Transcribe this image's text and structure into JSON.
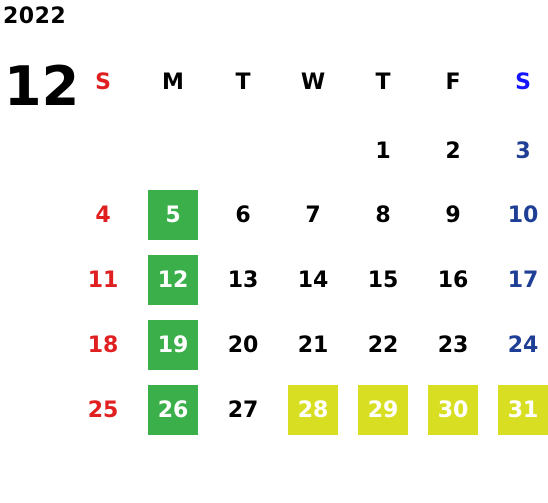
{
  "header": {
    "year": "2022",
    "month": "12"
  },
  "colors": {
    "sunday": "#e02020",
    "saturday": "#1f3f96",
    "saturday_header": "#1515ff",
    "green_highlight": "#3bb04a",
    "yellow_highlight": "#d8df23"
  },
  "weekdays": [
    "S",
    "M",
    "T",
    "W",
    "T",
    "F",
    "S"
  ],
  "weeks": [
    [
      {
        "day": "",
        "hl": ""
      },
      {
        "day": "",
        "hl": ""
      },
      {
        "day": "",
        "hl": ""
      },
      {
        "day": "",
        "hl": ""
      },
      {
        "day": "1",
        "hl": ""
      },
      {
        "day": "2",
        "hl": ""
      },
      {
        "day": "3",
        "hl": ""
      }
    ],
    [
      {
        "day": "4",
        "hl": ""
      },
      {
        "day": "5",
        "hl": "green"
      },
      {
        "day": "6",
        "hl": ""
      },
      {
        "day": "7",
        "hl": ""
      },
      {
        "day": "8",
        "hl": ""
      },
      {
        "day": "9",
        "hl": ""
      },
      {
        "day": "10",
        "hl": ""
      }
    ],
    [
      {
        "day": "11",
        "hl": ""
      },
      {
        "day": "12",
        "hl": "green"
      },
      {
        "day": "13",
        "hl": ""
      },
      {
        "day": "14",
        "hl": ""
      },
      {
        "day": "15",
        "hl": ""
      },
      {
        "day": "16",
        "hl": ""
      },
      {
        "day": "17",
        "hl": ""
      }
    ],
    [
      {
        "day": "18",
        "hl": ""
      },
      {
        "day": "19",
        "hl": "green"
      },
      {
        "day": "20",
        "hl": ""
      },
      {
        "day": "21",
        "hl": ""
      },
      {
        "day": "22",
        "hl": ""
      },
      {
        "day": "23",
        "hl": ""
      },
      {
        "day": "24",
        "hl": ""
      }
    ],
    [
      {
        "day": "25",
        "hl": ""
      },
      {
        "day": "26",
        "hl": "green"
      },
      {
        "day": "27",
        "hl": ""
      },
      {
        "day": "28",
        "hl": "yellow"
      },
      {
        "day": "29",
        "hl": "yellow"
      },
      {
        "day": "30",
        "hl": "yellow"
      },
      {
        "day": "31",
        "hl": "yellow"
      }
    ]
  ]
}
